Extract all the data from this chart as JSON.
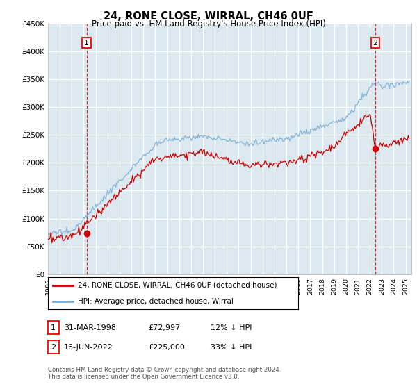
{
  "title": "24, RONE CLOSE, WIRRAL, CH46 0UF",
  "subtitle": "Price paid vs. HM Land Registry's House Price Index (HPI)",
  "ylim": [
    0,
    450000
  ],
  "yticks": [
    0,
    50000,
    100000,
    150000,
    200000,
    250000,
    300000,
    350000,
    400000,
    450000
  ],
  "ytick_labels": [
    "£0",
    "£50K",
    "£100K",
    "£150K",
    "£200K",
    "£250K",
    "£300K",
    "£350K",
    "£400K",
    "£450K"
  ],
  "xlim_start": 1995.0,
  "xlim_end": 2025.5,
  "sale1_date_label": "31-MAR-1998",
  "sale1_price": 72997,
  "sale1_hpi_pct": "12% ↓ HPI",
  "sale1_x": 1998.25,
  "sale2_date_label": "16-JUN-2022",
  "sale2_price": 225000,
  "sale2_hpi_pct": "33% ↓ HPI",
  "sale2_x": 2022.46,
  "legend_line1": "24, RONE CLOSE, WIRRAL, CH46 0UF (detached house)",
  "legend_line2": "HPI: Average price, detached house, Wirral",
  "footer": "Contains HM Land Registry data © Crown copyright and database right 2024.\nThis data is licensed under the Open Government Licence v3.0.",
  "hpi_color": "#7aadd4",
  "price_color": "#cc0000",
  "plot_bg": "#dce8f0",
  "grid_color": "#c0d0e0"
}
